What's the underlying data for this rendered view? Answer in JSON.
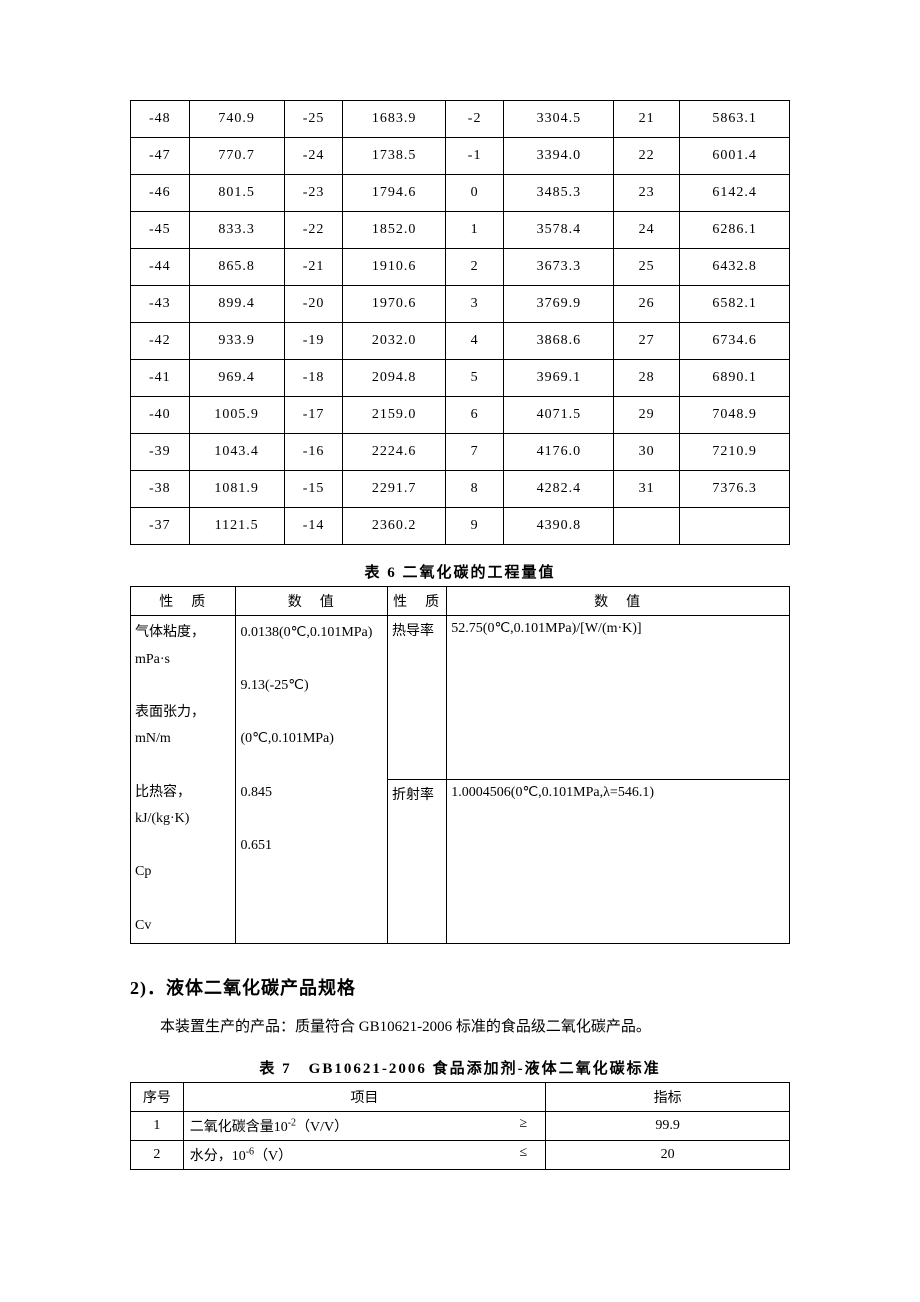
{
  "topTable": {
    "rows": [
      [
        "-48",
        "740.9",
        "-25",
        "1683.9",
        "-2",
        "3304.5",
        "21",
        "5863.1"
      ],
      [
        "-47",
        "770.7",
        "-24",
        "1738.5",
        "-1",
        "3394.0",
        "22",
        "6001.4"
      ],
      [
        "-46",
        "801.5",
        "-23",
        "1794.6",
        "0",
        "3485.3",
        "23",
        "6142.4"
      ],
      [
        "-45",
        "833.3",
        "-22",
        "1852.0",
        "1",
        "3578.4",
        "24",
        "6286.1"
      ],
      [
        "-44",
        "865.8",
        "-21",
        "1910.6",
        "2",
        "3673.3",
        "25",
        "6432.8"
      ],
      [
        "-43",
        "899.4",
        "-20",
        "1970.6",
        "3",
        "3769.9",
        "26",
        "6582.1"
      ],
      [
        "-42",
        "933.9",
        "-19",
        "2032.0",
        "4",
        "3868.6",
        "27",
        "6734.6"
      ],
      [
        "-41",
        "969.4",
        "-18",
        "2094.8",
        "5",
        "3969.1",
        "28",
        "6890.1"
      ],
      [
        "-40",
        "1005.9",
        "-17",
        "2159.0",
        "6",
        "4071.5",
        "29",
        "7048.9"
      ],
      [
        "-39",
        "1043.4",
        "-16",
        "2224.6",
        "7",
        "4176.0",
        "30",
        "7210.9"
      ],
      [
        "-38",
        "1081.9",
        "-15",
        "2291.7",
        "8",
        "4282.4",
        "31",
        "7376.3"
      ],
      [
        "-37",
        "1121.5",
        "-14",
        "2360.2",
        "9",
        "4390.8",
        "",
        ""
      ]
    ]
  },
  "table6": {
    "caption": "表 6  二氧化碳的工程量值",
    "headers": [
      "性　质",
      "数　值",
      "性　质",
      "数　值"
    ],
    "leftProps": "气体粘度，\nmPa·s\n\n表面张力，\nmN/m\n\n比热容，\nkJ/(kg·K)\n\nCp\n\nCv",
    "leftVals": "0.0138(0℃,0.101MPa)\n\n9.13(-25℃)\n\n(0℃,0.101MPa)\n\n0.845\n\n0.651",
    "rightProp1": "热导率",
    "rightVal1": "52.75(0℃,0.101MPa)/[W/(m·K)]",
    "rightProp2": "折射率",
    "rightVal2": "1.0004506(0℃,0.101MPa,λ=546.1)"
  },
  "section": {
    "title": "2)．液体二氧化碳产品规格",
    "body": "本装置生产的产品：质量符合 GB10621-2006 标准的食品级二氧化碳产品。"
  },
  "table7": {
    "caption": "表 7　GB10621-2006 食品添加剂-液体二氧化碳标准",
    "headers": [
      "序号",
      "项目",
      "指标"
    ],
    "rows": [
      {
        "no": "1",
        "item_prefix": "二氧化碳含量10",
        "item_sup": "-2",
        "item_suffix": "（V/V）",
        "op": "≥",
        "value": "99.9"
      },
      {
        "no": "2",
        "item_prefix": "水分，10",
        "item_sup": "-6",
        "item_suffix": "（V）",
        "op": "≤",
        "value": "20"
      }
    ]
  }
}
